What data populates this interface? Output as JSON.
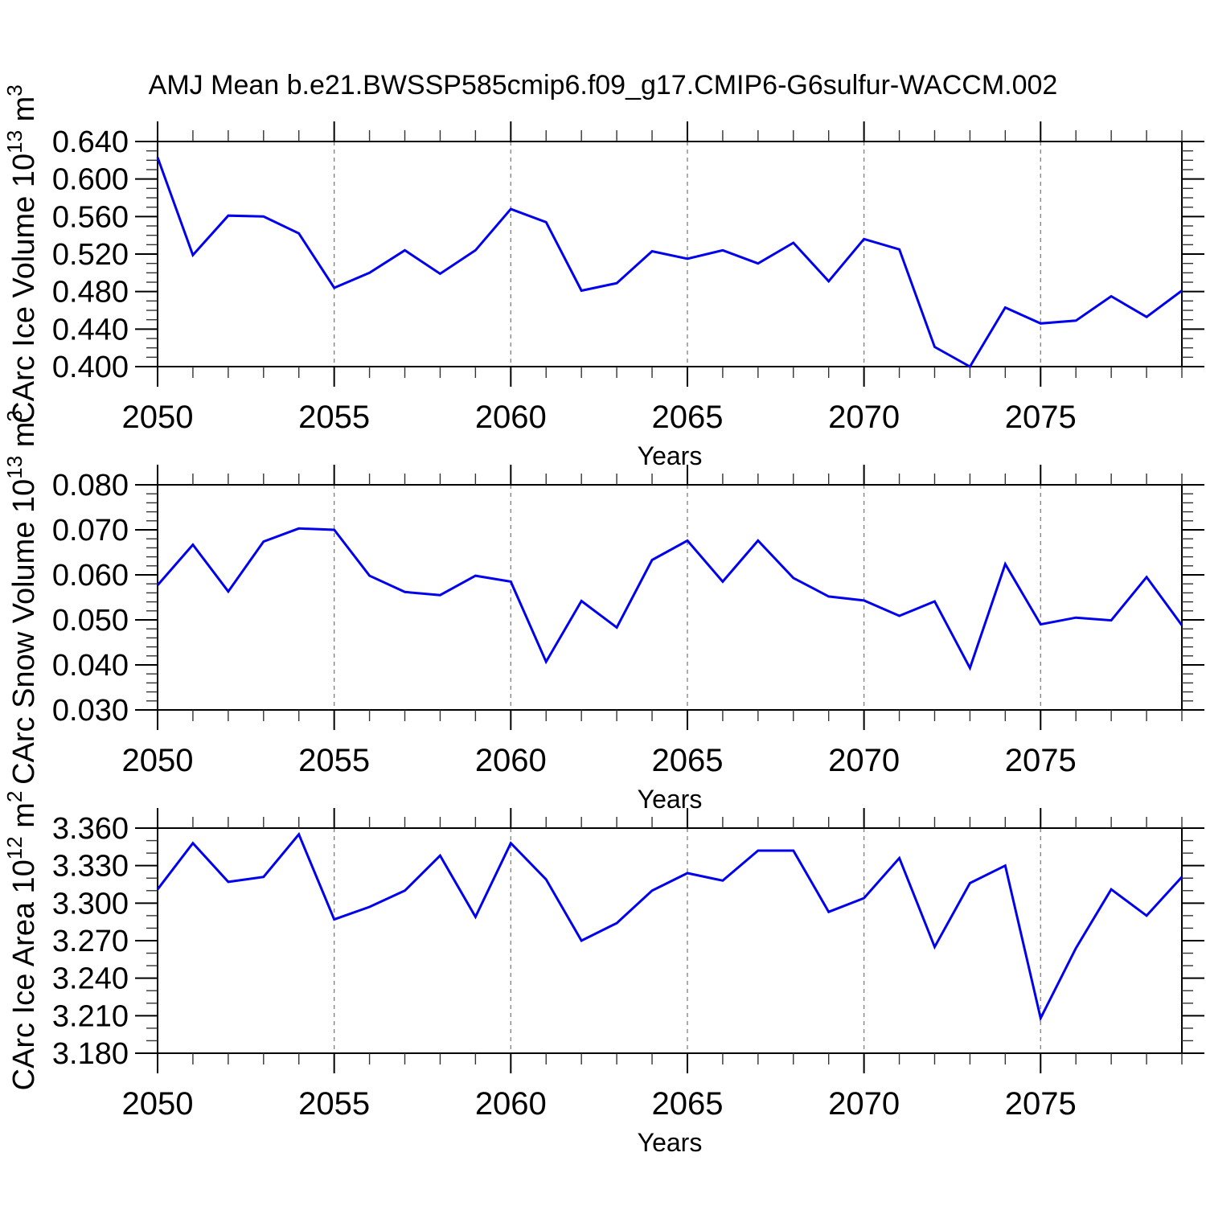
{
  "title": "AMJ Mean b.e21.BWSSP585cmip6.f09_g17.CMIP6-G6sulfur-WACCM.002",
  "colors": {
    "line": "#0000ee",
    "grid": "#808080",
    "frame": "#000000",
    "minor_tick": "#333333",
    "text": "#000000",
    "background": "#ffffff"
  },
  "x_axis": {
    "label": "Years",
    "start": 2050,
    "end": 2079,
    "major_step": 5,
    "minor_step": 1,
    "major_tick_labels": [
      "2050",
      "2055",
      "2060",
      "2065",
      "2070",
      "2075"
    ],
    "dashed_grid_years": [
      2055,
      2060,
      2065,
      2070,
      2075
    ]
  },
  "years": [
    2050,
    2051,
    2052,
    2053,
    2054,
    2055,
    2056,
    2057,
    2058,
    2059,
    2060,
    2061,
    2062,
    2063,
    2064,
    2065,
    2066,
    2067,
    2068,
    2069,
    2070,
    2071,
    2072,
    2073,
    2074,
    2075,
    2076,
    2077,
    2078,
    2079
  ],
  "chart_data": [
    {
      "type": "line",
      "id": "ice-volume",
      "ylabel": "CArc Ice Volume 10^13 m^3",
      "ylabel_parts": [
        {
          "t": "CArc Ice Volume 10",
          "sup": false
        },
        {
          "t": "13",
          "sup": true
        },
        {
          "t": " m",
          "sup": false
        },
        {
          "t": "3",
          "sup": true
        }
      ],
      "xlabel": "Years",
      "ylim": [
        0.4,
        0.64
      ],
      "ytick_major": 0.04,
      "ytick_minor": 0.01,
      "ytick_labels": [
        "0.400",
        "0.440",
        "0.480",
        "0.520",
        "0.560",
        "0.600",
        "0.640"
      ],
      "values": [
        0.623,
        0.519,
        0.561,
        0.56,
        0.542,
        0.484,
        0.5,
        0.524,
        0.499,
        0.524,
        0.568,
        0.554,
        0.481,
        0.489,
        0.523,
        0.515,
        0.524,
        0.51,
        0.532,
        0.491,
        0.536,
        0.525,
        0.421,
        0.4,
        0.463,
        0.446,
        0.449,
        0.475,
        0.453,
        0.481
      ]
    },
    {
      "type": "line",
      "id": "snow-volume",
      "ylabel": "CArc Snow Volume 10^13 m^3",
      "ylabel_parts": [
        {
          "t": "CArc Snow Volume 10",
          "sup": false
        },
        {
          "t": "13",
          "sup": true
        },
        {
          "t": " m",
          "sup": false
        },
        {
          "t": "3",
          "sup": true
        }
      ],
      "xlabel": "Years",
      "ylim": [
        0.03,
        0.08
      ],
      "ytick_major": 0.01,
      "ytick_minor": 0.002,
      "ytick_labels": [
        "0.030",
        "0.040",
        "0.050",
        "0.060",
        "0.070",
        "0.080"
      ],
      "values": [
        0.0577,
        0.0667,
        0.0563,
        0.0674,
        0.0703,
        0.07,
        0.0598,
        0.0562,
        0.0555,
        0.0598,
        0.0585,
        0.0407,
        0.0542,
        0.0483,
        0.0633,
        0.0676,
        0.0585,
        0.0676,
        0.0593,
        0.0552,
        0.0543,
        0.0509,
        0.0541,
        0.0393,
        0.0624,
        0.049,
        0.0505,
        0.0499,
        0.0595,
        0.0488
      ]
    },
    {
      "type": "line",
      "id": "ice-area",
      "ylabel": "CArc Ice Area 10^12 m^2",
      "ylabel_parts": [
        {
          "t": "CArc Ice Area 10",
          "sup": false
        },
        {
          "t": "12",
          "sup": true
        },
        {
          "t": " m",
          "sup": false
        },
        {
          "t": "2",
          "sup": true
        }
      ],
      "xlabel": "Years",
      "ylim": [
        3.18,
        3.36
      ],
      "ytick_major": 0.03,
      "ytick_minor": 0.01,
      "ytick_labels": [
        "3.180",
        "3.210",
        "3.240",
        "3.270",
        "3.300",
        "3.330",
        "3.360"
      ],
      "values": [
        3.311,
        3.348,
        3.317,
        3.321,
        3.355,
        3.287,
        3.297,
        3.31,
        3.338,
        3.289,
        3.348,
        3.319,
        3.27,
        3.284,
        3.31,
        3.324,
        3.318,
        3.342,
        3.342,
        3.293,
        3.304,
        3.336,
        3.265,
        3.316,
        3.33,
        3.208,
        3.264,
        3.311,
        3.29,
        3.321
      ]
    }
  ]
}
